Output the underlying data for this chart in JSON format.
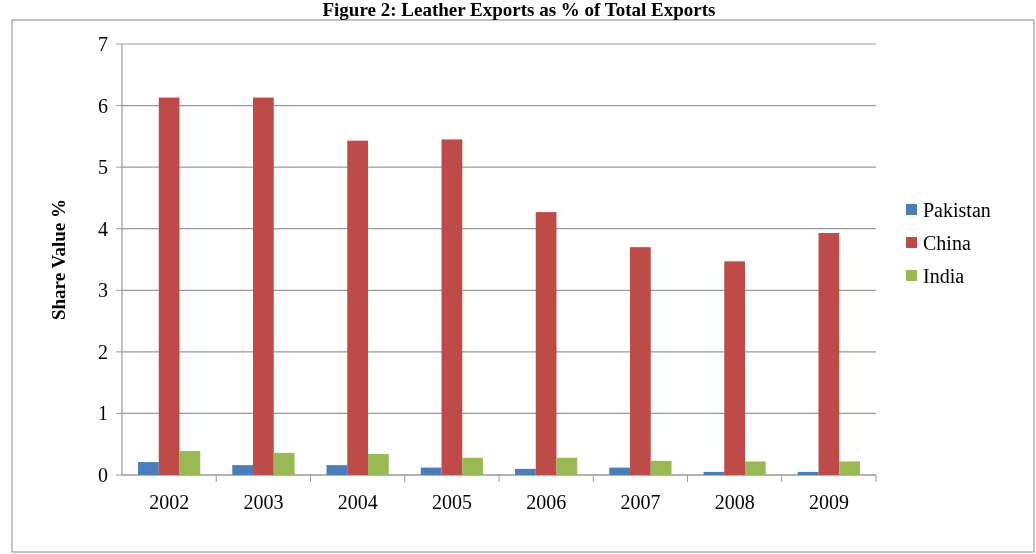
{
  "chart_data": {
    "type": "bar",
    "title": "Figure 2: Leather Exports as % of Total Exports",
    "ylabel": "Share Value  %",
    "categories": [
      "2002",
      "2003",
      "2004",
      "2005",
      "2006",
      "2007",
      "2008",
      "2009"
    ],
    "series": [
      {
        "name": "Pakistan",
        "color": "#4a7ebb",
        "values": [
          0.21,
          0.16,
          0.16,
          0.12,
          0.1,
          0.12,
          0.05,
          0.05
        ]
      },
      {
        "name": "China",
        "color": "#be4b48",
        "values": [
          6.13,
          6.13,
          5.43,
          5.45,
          4.27,
          3.7,
          3.47,
          3.93
        ]
      },
      {
        "name": "India",
        "color": "#98b954",
        "values": [
          0.39,
          0.36,
          0.34,
          0.28,
          0.28,
          0.23,
          0.22,
          0.22
        ]
      }
    ],
    "ylim": [
      0,
      7
    ],
    "yticks": [
      0,
      1,
      2,
      3,
      4,
      5,
      6,
      7
    ],
    "grid": "y",
    "legend": "right"
  }
}
